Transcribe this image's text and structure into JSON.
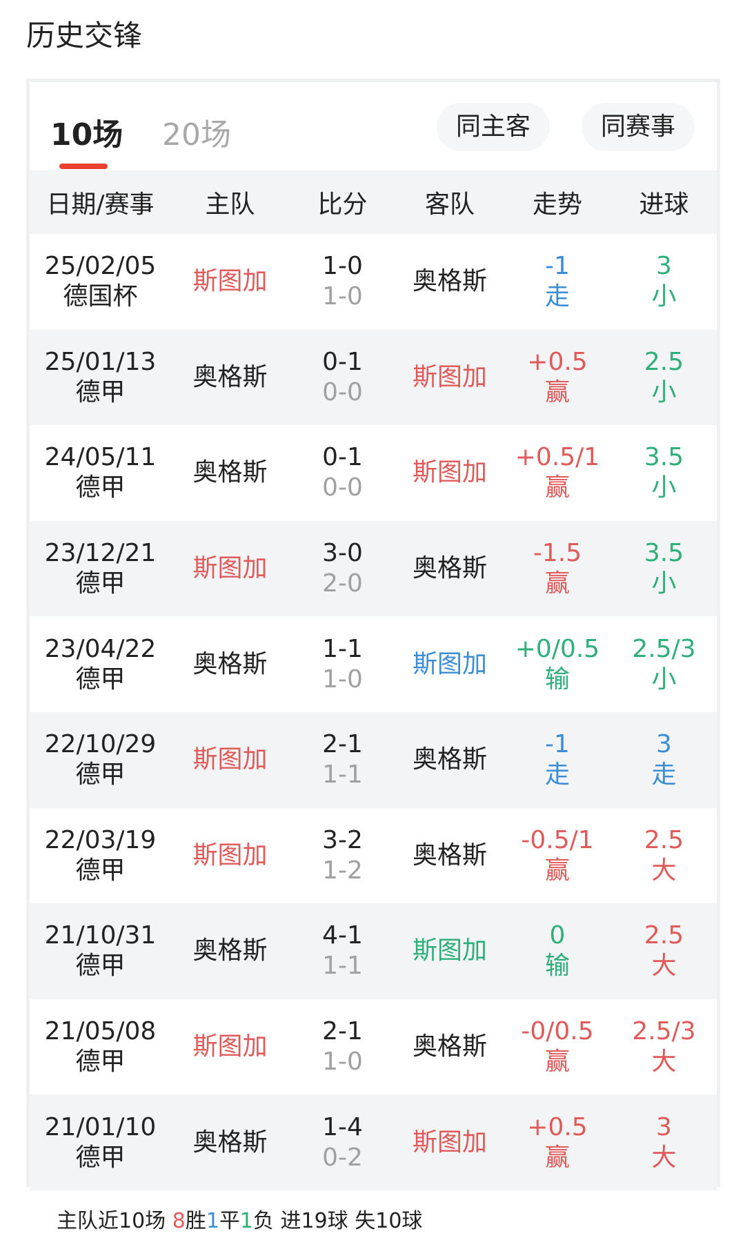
{
  "title": "历史交锋",
  "colors": {
    "red": "#e05a5a",
    "blue": "#3b8ed6",
    "green": "#2eaf79",
    "dark": "#222222",
    "gray": "#a0a0a0",
    "accent": "#e8412f"
  },
  "tabs": [
    {
      "label": "10场",
      "active": true
    },
    {
      "label": "20场",
      "active": false
    }
  ],
  "filters": [
    "同主客",
    "同赛事"
  ],
  "columns": [
    "日期/赛事",
    "主队",
    "比分",
    "客队",
    "走势",
    "进球"
  ],
  "rows": [
    {
      "date": "25/02/05",
      "league": "德国杯",
      "home": "斯图加",
      "home_color": "red",
      "score": "1-0",
      "half": "1-0",
      "away": "奥格斯",
      "away_color": "dark",
      "line": "-1",
      "result": "走",
      "trend_color": "blue",
      "goals": "3",
      "ou": "小",
      "goals_color": "green"
    },
    {
      "date": "25/01/13",
      "league": "德甲",
      "home": "奥格斯",
      "home_color": "dark",
      "score": "0-1",
      "half": "0-0",
      "away": "斯图加",
      "away_color": "red",
      "line": "+0.5",
      "result": "赢",
      "trend_color": "red",
      "goals": "2.5",
      "ou": "小",
      "goals_color": "green"
    },
    {
      "date": "24/05/11",
      "league": "德甲",
      "home": "奥格斯",
      "home_color": "dark",
      "score": "0-1",
      "half": "0-0",
      "away": "斯图加",
      "away_color": "red",
      "line": "+0.5/1",
      "result": "赢",
      "trend_color": "red",
      "goals": "3.5",
      "ou": "小",
      "goals_color": "green"
    },
    {
      "date": "23/12/21",
      "league": "德甲",
      "home": "斯图加",
      "home_color": "red",
      "score": "3-0",
      "half": "2-0",
      "away": "奥格斯",
      "away_color": "dark",
      "line": "-1.5",
      "result": "赢",
      "trend_color": "red",
      "goals": "3.5",
      "ou": "小",
      "goals_color": "green"
    },
    {
      "date": "23/04/22",
      "league": "德甲",
      "home": "奥格斯",
      "home_color": "dark",
      "score": "1-1",
      "half": "1-0",
      "away": "斯图加",
      "away_color": "blue",
      "line": "+0/0.5",
      "result": "输",
      "trend_color": "green",
      "goals": "2.5/3",
      "ou": "小",
      "goals_color": "green"
    },
    {
      "date": "22/10/29",
      "league": "德甲",
      "home": "斯图加",
      "home_color": "red",
      "score": "2-1",
      "half": "1-1",
      "away": "奥格斯",
      "away_color": "dark",
      "line": "-1",
      "result": "走",
      "trend_color": "blue",
      "goals": "3",
      "ou": "走",
      "goals_color": "blue"
    },
    {
      "date": "22/03/19",
      "league": "德甲",
      "home": "斯图加",
      "home_color": "red",
      "score": "3-2",
      "half": "1-2",
      "away": "奥格斯",
      "away_color": "dark",
      "line": "-0.5/1",
      "result": "赢",
      "trend_color": "red",
      "goals": "2.5",
      "ou": "大",
      "goals_color": "red"
    },
    {
      "date": "21/10/31",
      "league": "德甲",
      "home": "奥格斯",
      "home_color": "dark",
      "score": "4-1",
      "half": "1-1",
      "away": "斯图加",
      "away_color": "green",
      "line": "0",
      "result": "输",
      "trend_color": "green",
      "goals": "2.5",
      "ou": "大",
      "goals_color": "red"
    },
    {
      "date": "21/05/08",
      "league": "德甲",
      "home": "斯图加",
      "home_color": "red",
      "score": "2-1",
      "half": "1-0",
      "away": "奥格斯",
      "away_color": "dark",
      "line": "-0/0.5",
      "result": "赢",
      "trend_color": "red",
      "goals": "2.5/3",
      "ou": "大",
      "goals_color": "red"
    },
    {
      "date": "21/01/10",
      "league": "德甲",
      "home": "奥格斯",
      "home_color": "dark",
      "score": "1-4",
      "half": "0-2",
      "away": "斯图加",
      "away_color": "red",
      "line": "+0.5",
      "result": "赢",
      "trend_color": "red",
      "goals": "3",
      "ou": "大",
      "goals_color": "red"
    }
  ],
  "summary": {
    "prefix": "主队近10场 ",
    "wins": "8",
    "wins_label": "胜",
    "draws": "1",
    "draws_label": "平",
    "losses": "1",
    "losses_label": "负",
    "suffix": " 进19球 失10球"
  }
}
